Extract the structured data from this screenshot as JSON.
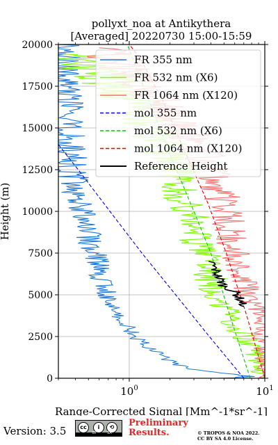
{
  "chart_data": {
    "type": "line",
    "title": "pollyxt_noa at Antikythera",
    "subtitle": "[Averaged] 20220730 15:00-15:59",
    "xlabel": "Range-Corrected Signal [Mm^-1*sr^-1]",
    "ylabel": "Height (m)",
    "xscale": "log",
    "xlim": [
      0.3,
      10
    ],
    "ylim": [
      0,
      20000
    ],
    "xticks": [
      "10^0",
      "10^1"
    ],
    "yticks": [
      "0",
      "2500",
      "5000",
      "7500",
      "10000",
      "12500",
      "15000",
      "17500",
      "20000"
    ],
    "grid": true,
    "legend_position": "top-right",
    "legend": [
      "FR 355 nm",
      "FR 532 nm (X6)",
      "FR 1064 nm (X120)",
      "mol 355 nm",
      "mol 532 nm (X6)",
      "mol 1064 nm (X120)",
      "Reference Height"
    ],
    "series": [
      {
        "name": "FR 355 nm",
        "color": "#1f77d4",
        "style": "solid",
        "noise": 0.12,
        "points": [
          [
            5.0,
            0
          ],
          [
            8.0,
            100
          ],
          [
            5.5,
            250
          ],
          [
            3.0,
            500
          ],
          [
            2.0,
            1000
          ],
          [
            1.6,
            1500
          ],
          [
            1.3,
            2000
          ],
          [
            1.1,
            2500
          ],
          [
            1.0,
            3000
          ],
          [
            0.85,
            3500
          ],
          [
            0.75,
            4000
          ],
          [
            0.68,
            5000
          ],
          [
            0.62,
            6000
          ],
          [
            0.6,
            7000
          ],
          [
            0.55,
            7500
          ],
          [
            0.5,
            8500
          ],
          [
            0.45,
            9500
          ],
          [
            0.42,
            10500
          ],
          [
            0.4,
            11500
          ],
          [
            0.38,
            12500
          ],
          [
            0.36,
            13500
          ],
          [
            0.34,
            15000
          ],
          [
            0.33,
            16500
          ],
          [
            0.32,
            18000
          ],
          [
            0.31,
            19500
          ],
          [
            0.3,
            20000
          ]
        ]
      },
      {
        "name": "FR 532 nm (X6)",
        "color": "#7cfc00",
        "style": "solid",
        "noise": 0.18,
        "points": [
          [
            9.5,
            0
          ],
          [
            9.0,
            1000
          ],
          [
            8.0,
            1800
          ],
          [
            6.5,
            2800
          ],
          [
            5.5,
            3700
          ],
          [
            5.0,
            4200
          ],
          [
            4.3,
            5300
          ],
          [
            3.8,
            6500
          ],
          [
            3.4,
            7800
          ],
          [
            3.0,
            9000
          ],
          [
            2.6,
            10500
          ],
          [
            2.3,
            11700
          ],
          [
            2.0,
            13000
          ],
          [
            1.6,
            14500
          ],
          [
            1.2,
            16000
          ],
          [
            0.8,
            17500
          ],
          [
            0.5,
            18800
          ],
          [
            0.3,
            19500
          ]
        ]
      },
      {
        "name": "FR 1064 nm (X120)",
        "color": "#f87070",
        "style": "solid",
        "noise": 0.15,
        "points": [
          [
            10.0,
            0
          ],
          [
            9.8,
            1500
          ],
          [
            9.5,
            3300
          ],
          [
            8.0,
            4500
          ],
          [
            7.0,
            6000
          ],
          [
            6.0,
            7500
          ],
          [
            5.5,
            9000
          ],
          [
            5.0,
            10500
          ],
          [
            4.5,
            12000
          ],
          [
            3.5,
            13500
          ],
          [
            2.5,
            15000
          ],
          [
            1.7,
            16500
          ],
          [
            1.1,
            18000
          ],
          [
            0.8,
            19000
          ],
          [
            0.6,
            19800
          ]
        ]
      },
      {
        "name": "mol 355 nm",
        "color": "#0000d8",
        "style": "dashed",
        "points": [
          [
            7.0,
            0
          ],
          [
            3.9,
            2500
          ],
          [
            2.2,
            5000
          ],
          [
            1.24,
            7500
          ],
          [
            0.72,
            10000
          ],
          [
            0.42,
            12500
          ],
          [
            0.3,
            14000
          ]
        ]
      },
      {
        "name": "mol 532 nm (X6)",
        "color": "#10c010",
        "style": "dashed",
        "points": [
          [
            7.8,
            0
          ],
          [
            5.5,
            3800
          ],
          [
            4.0,
            7500
          ],
          [
            3.0,
            10000
          ],
          [
            2.1,
            13000
          ],
          [
            1.5,
            16000
          ],
          [
            1.1,
            18800
          ],
          [
            0.97,
            20000
          ]
        ]
      },
      {
        "name": "mol 1064 nm (X120)",
        "color": "#e00000",
        "style": "dashed",
        "points": [
          [
            10.0,
            0
          ],
          [
            7.2,
            4000
          ],
          [
            5.2,
            7500
          ],
          [
            3.8,
            10500
          ],
          [
            2.6,
            13500
          ],
          [
            1.8,
            16500
          ],
          [
            1.2,
            19200
          ],
          [
            1.0,
            20000
          ]
        ]
      },
      {
        "name": "Reference Height",
        "color": "#000000",
        "style": "solid",
        "noise": 0.06,
        "points": [
          [
            4.0,
            7000
          ],
          [
            4.3,
            6500
          ],
          [
            4.6,
            6000
          ],
          [
            5.0,
            5500
          ],
          [
            6.0,
            5200
          ],
          [
            6.5,
            4800
          ],
          [
            7.0,
            4300
          ]
        ]
      }
    ]
  },
  "footer": {
    "version": "Version: 3.5",
    "prelim_line1": "Preliminary",
    "prelim_line2": "Results.",
    "copyright_line1": "© TROPOS & NOA 2022.",
    "copyright_line2": "CC BY SA 4.0 License.",
    "badge_cc": "cc",
    "badge_by": "BY",
    "badge_sa": "SA"
  }
}
